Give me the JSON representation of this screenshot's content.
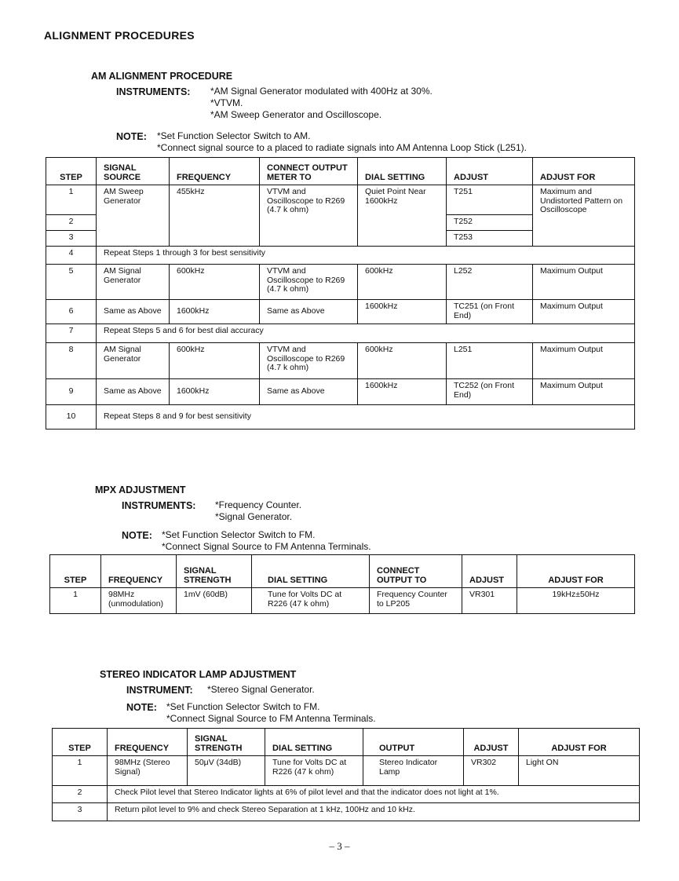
{
  "title": "ALIGNMENT PROCEDURES",
  "am": {
    "heading": "AM ALIGNMENT PROCEDURE",
    "instruments_label": "INSTRUMENTS:",
    "instruments": [
      "*AM Signal Generator modulated with 400Hz at 30%.",
      "*VTVM.",
      "*AM Sweep Generator and Oscilloscope."
    ],
    "note_label": "NOTE:",
    "notes": [
      "*Set Function Selector Switch to AM.",
      "*Connect signal source to a placed to radiate signals into AM Antenna Loop Stick (L251)."
    ],
    "headers": [
      "STEP",
      "SIGNAL SOURCE",
      "FREQUENCY",
      "CONNECT OUTPUT METER TO",
      "DIAL SETTING",
      "ADJUST",
      "ADJUST FOR"
    ],
    "r1": {
      "step": "1",
      "source": "AM Sweep Generator",
      "freq": "455kHz",
      "meter": "VTVM and Oscilloscope to R269 (4.7 k ohm)",
      "dial": "Quiet Point Near 1600kHz",
      "adjust": "T251",
      "for": "Maximum and Undistorted Pattern on Oscilloscope"
    },
    "r2": {
      "step": "2",
      "adjust": "T252"
    },
    "r3": {
      "step": "3",
      "adjust": "T253"
    },
    "r4": {
      "step": "4",
      "text": "Repeat Steps 1 through 3 for best sensitivity"
    },
    "r5": {
      "step": "5",
      "source": "AM Signal Generator",
      "freq": "600kHz",
      "meter": "VTVM and Oscilloscope to R269 (4.7 k ohm)",
      "dial": "600kHz",
      "adjust": "L252",
      "for": "Maximum Output"
    },
    "r6": {
      "step": "6",
      "source": "Same as Above",
      "freq": "1600kHz",
      "meter": "Same as Above",
      "dial": "1600kHz",
      "adjust": "TC251 (on Front End)",
      "for": "Maximum Output"
    },
    "r7": {
      "step": "7",
      "text": "Repeat Steps 5 and 6 for best dial accuracy"
    },
    "r8": {
      "step": "8",
      "source": "AM Signal Generator",
      "freq": "600kHz",
      "meter": "VTVM and Oscilloscope to R269 (4.7 k ohm)",
      "dial": "600kHz",
      "adjust": "L251",
      "for": "Maximum Output"
    },
    "r9": {
      "step": "9",
      "source": "Same as Above",
      "freq": "1600kHz",
      "meter": "Same as Above",
      "dial": "1600kHz",
      "adjust": "TC252 (on Front End)",
      "for": "Maximum Output"
    },
    "r10": {
      "step": "10",
      "text": "Repeat Steps 8 and 9 for best sensitivity"
    }
  },
  "mpx": {
    "heading": "MPX ADJUSTMENT",
    "instruments_label": "INSTRUMENTS:",
    "instruments": [
      "*Frequency Counter.",
      "*Signal Generator."
    ],
    "note_label": "NOTE:",
    "notes": [
      "*Set Function Selector Switch to FM.",
      "*Connect Signal Source to FM Antenna Terminals."
    ],
    "headers": [
      "STEP",
      "FREQUENCY",
      "SIGNAL STRENGTH",
      "DIAL SETTING",
      "CONNECT OUTPUT TO",
      "ADJUST",
      "ADJUST FOR"
    ],
    "r1": {
      "step": "1",
      "freq": "98MHz (unmodulation)",
      "strength": "1mV (60dB)",
      "dial": "Tune for Volts DC at R226 (47 k ohm)",
      "output": "Frequency Counter to LP205",
      "adjust": "VR301",
      "for": "19kHz±50Hz"
    }
  },
  "stereo": {
    "heading": "STEREO INDICATOR LAMP ADJUSTMENT",
    "instruments_label": "INSTRUMENT:",
    "instruments": [
      "*Stereo Signal Generator."
    ],
    "note_label": "NOTE:",
    "notes": [
      "*Set Function Selector Switch to FM.",
      "*Connect Signal Source to FM Antenna Terminals."
    ],
    "headers": [
      "STEP",
      "FREQUENCY",
      "SIGNAL STRENGTH",
      "DIAL SETTING",
      "OUTPUT",
      "ADJUST",
      "ADJUST FOR"
    ],
    "r1": {
      "step": "1",
      "freq": "98MHz (Stereo Signal)",
      "strength": "50μV (34dB)",
      "dial": "Tune for Volts DC at R226 (47 k ohm)",
      "output": "Stereo Indicator Lamp",
      "adjust": "VR302",
      "for": "Light ON"
    },
    "r2": {
      "step": "2",
      "text": "Check Pilot level that Stereo Indicator lights at 6% of pilot level and that the indicator does not light at 1%."
    },
    "r3": {
      "step": "3",
      "text": "Return pilot level to 9% and check Stereo Separation at 1 kHz, 100Hz and 10 kHz."
    }
  },
  "page_number": "– 3 –"
}
